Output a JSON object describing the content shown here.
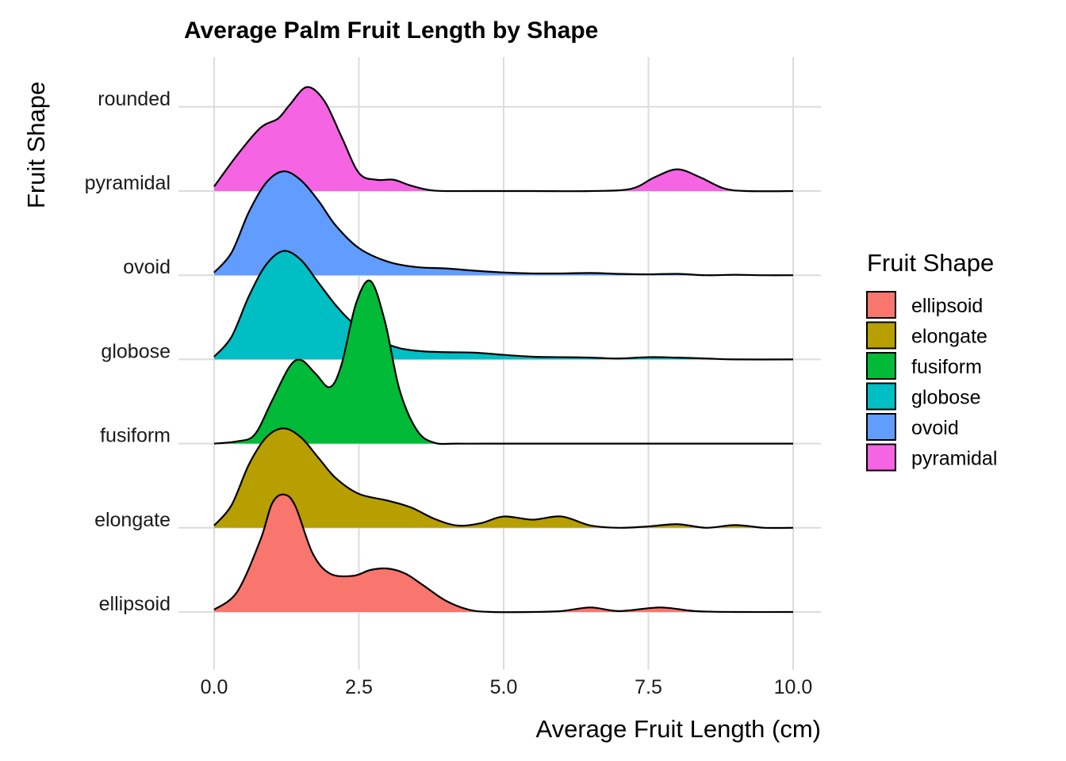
{
  "chart_data": {
    "type": "ridgeline",
    "title": "Average Palm Fruit Length by Shape",
    "xlabel": "Average Fruit Length (cm)",
    "ylabel": "Fruit Shape",
    "xlim": [
      0,
      10
    ],
    "x_ticks": [
      "0.0",
      "2.5",
      "5.0",
      "7.5",
      "10.0"
    ],
    "y_categories": [
      "ellipsoid",
      "elongate",
      "fusiform",
      "globose",
      "ovoid",
      "pyramidal",
      "rounded"
    ],
    "grid": true,
    "legend": {
      "title": "Fruit Shape",
      "position": "right",
      "entries": [
        {
          "label": "ellipsoid",
          "color": "#F8766D"
        },
        {
          "label": "elongate",
          "color": "#B79F00"
        },
        {
          "label": "fusiform",
          "color": "#00BA38"
        },
        {
          "label": "globose",
          "color": "#00BFC4"
        },
        {
          "label": "ovoid",
          "color": "#619CFF"
        },
        {
          "label": "pyramidal",
          "color": "#F564E3"
        }
      ]
    },
    "series": [
      {
        "name": "ellipsoid",
        "color": "#F8766D",
        "x": [
          0,
          0.4,
          0.8,
          1.0,
          1.2,
          1.4,
          1.7,
          2.0,
          2.4,
          2.7,
          3.0,
          3.3,
          3.6,
          4.0,
          4.4,
          4.8,
          5.5,
          6.0,
          6.5,
          7.0,
          7.7,
          8.3,
          9.0,
          10.0
        ],
        "density": [
          0.05,
          0.45,
          1.6,
          2.4,
          2.6,
          2.35,
          1.3,
          0.85,
          0.8,
          0.93,
          0.96,
          0.85,
          0.6,
          0.25,
          0.05,
          0.0,
          0.0,
          0.02,
          0.1,
          0.02,
          0.1,
          0.02,
          0.0,
          0.0
        ]
      },
      {
        "name": "elongate",
        "color": "#B79F00",
        "x": [
          0,
          0.3,
          0.6,
          0.9,
          1.2,
          1.5,
          1.8,
          2.1,
          2.5,
          3.0,
          3.4,
          3.8,
          4.2,
          4.6,
          5.0,
          5.5,
          6.0,
          6.5,
          7.0,
          7.5,
          8.0,
          8.5,
          9.0,
          9.5,
          10.0
        ],
        "density": [
          0.05,
          0.5,
          1.4,
          2.0,
          2.2,
          2.0,
          1.55,
          1.1,
          0.75,
          0.6,
          0.45,
          0.2,
          0.05,
          0.1,
          0.25,
          0.18,
          0.25,
          0.05,
          0.0,
          0.03,
          0.08,
          0.0,
          0.06,
          0.0,
          0.0
        ]
      },
      {
        "name": "fusiform",
        "color": "#00BA38",
        "x": [
          0,
          0.4,
          0.7,
          1.0,
          1.3,
          1.5,
          1.75,
          2.0,
          2.2,
          2.45,
          2.7,
          2.95,
          3.2,
          3.5,
          3.8,
          4.2,
          5.0,
          6.0,
          8.0,
          10.0
        ],
        "density": [
          0.0,
          0.05,
          0.2,
          0.95,
          1.7,
          1.85,
          1.55,
          1.25,
          1.75,
          3.1,
          3.6,
          2.7,
          1.2,
          0.3,
          0.02,
          0.0,
          0.0,
          0.0,
          0.0,
          0.0
        ]
      },
      {
        "name": "globose",
        "color": "#00BFC4",
        "x": [
          0,
          0.3,
          0.6,
          0.9,
          1.2,
          1.5,
          1.8,
          2.1,
          2.4,
          2.8,
          3.2,
          3.6,
          4.0,
          4.5,
          5.0,
          5.5,
          6.0,
          6.5,
          7.0,
          7.5,
          8.0,
          8.5,
          9.0,
          10.0
        ],
        "density": [
          0.06,
          0.5,
          1.4,
          2.1,
          2.4,
          2.2,
          1.7,
          1.2,
          0.8,
          0.45,
          0.25,
          0.18,
          0.16,
          0.15,
          0.1,
          0.06,
          0.05,
          0.04,
          0.02,
          0.05,
          0.04,
          0.02,
          0.0,
          0.0
        ]
      },
      {
        "name": "ovoid",
        "color": "#619CFF",
        "x": [
          0,
          0.3,
          0.6,
          0.9,
          1.2,
          1.5,
          1.8,
          2.1,
          2.5,
          3.0,
          3.5,
          4.0,
          4.5,
          5.0,
          5.5,
          6.0,
          6.5,
          7.0,
          7.5,
          8.0,
          8.5,
          9.0,
          9.5,
          10.0
        ],
        "density": [
          0.06,
          0.5,
          1.4,
          2.05,
          2.3,
          2.1,
          1.65,
          1.1,
          0.6,
          0.3,
          0.18,
          0.15,
          0.1,
          0.06,
          0.04,
          0.04,
          0.05,
          0.03,
          0.02,
          0.03,
          0.0,
          0.01,
          0.0,
          0.0
        ]
      },
      {
        "name": "pyramidal",
        "color": "#F564E3",
        "x": [
          0,
          0.4,
          0.8,
          1.1,
          1.3,
          1.6,
          1.9,
          2.2,
          2.5,
          2.8,
          3.1,
          3.4,
          3.8,
          4.5,
          5.5,
          6.5,
          7.2,
          7.6,
          8.0,
          8.4,
          8.8,
          9.2,
          10.0
        ],
        "density": [
          0.1,
          0.8,
          1.4,
          1.6,
          1.9,
          2.3,
          2.0,
          1.2,
          0.4,
          0.25,
          0.25,
          0.12,
          0.01,
          0.0,
          0.0,
          0.0,
          0.05,
          0.3,
          0.48,
          0.3,
          0.06,
          0.0,
          0.0
        ]
      }
    ]
  }
}
